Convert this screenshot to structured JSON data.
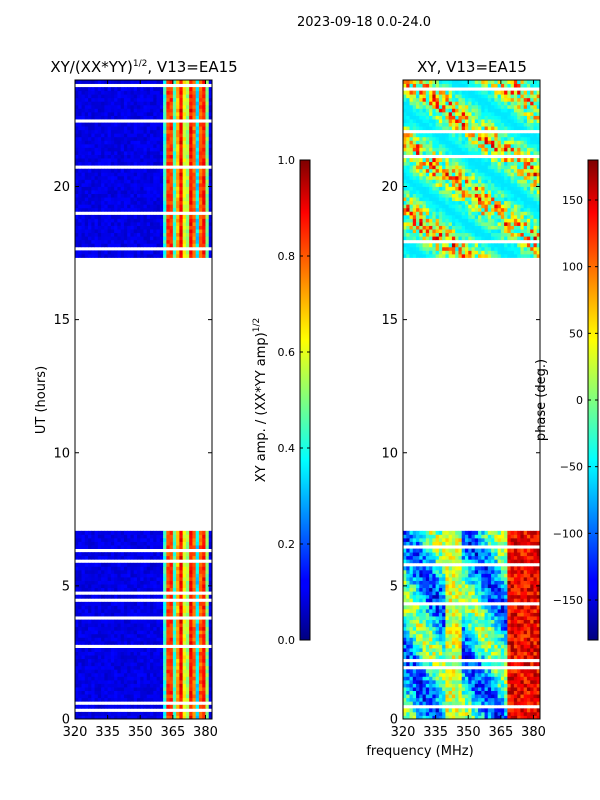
{
  "chart_data": {
    "suptitle": "2023-09-18 0.0-24.0",
    "xlabel": "frequency (MHz)",
    "panels": [
      {
        "type": "heatmap",
        "title": "XY/(XX*YY)",
        "title_sup": "1/2",
        "title_rest": ", V13=EA15",
        "ylabel": "UT (hours)",
        "xlim": [
          320,
          383
        ],
        "ylim": [
          0,
          24
        ],
        "xticks": [
          "320",
          "335",
          "350",
          "365",
          "380"
        ],
        "xtick_values": [
          320,
          335,
          350,
          365,
          380
        ],
        "yticks": [
          "0",
          "5",
          "10",
          "15",
          "20"
        ],
        "ytick_values": [
          0,
          5,
          10,
          15,
          20
        ],
        "colorbar": {
          "label": "XY amp. / (XX*YY amp)",
          "label_sup": "1/2",
          "range": [
            0,
            1
          ],
          "ticks": [
            "0.0",
            "0.2",
            "0.4",
            "0.6",
            "0.8",
            "1.0"
          ],
          "tick_values": [
            0,
            0.2,
            0.4,
            0.6,
            0.8,
            1.0
          ]
        }
      },
      {
        "type": "heatmap",
        "title": "XY, V13=EA15",
        "ylabel": "",
        "xlim": [
          320,
          383
        ],
        "ylim": [
          0,
          24
        ],
        "xticks": [
          "320",
          "335",
          "350",
          "365",
          "380"
        ],
        "xtick_values": [
          320,
          335,
          350,
          365,
          380
        ],
        "yticks": [
          "0",
          "5",
          "10",
          "15",
          "20"
        ],
        "ytick_values": [
          0,
          5,
          10,
          15,
          20
        ],
        "colorbar": {
          "label": "phase (deg.)",
          "range": [
            -180,
            180
          ],
          "ticks": [
            "−150",
            "−100",
            "−50",
            "0",
            "50",
            "100",
            "150"
          ],
          "tick_values": [
            -150,
            -100,
            -50,
            0,
            50,
            100,
            150
          ]
        }
      }
    ],
    "data_segments_ut": [
      [
        0,
        7.1
      ],
      [
        17.3,
        24
      ]
    ]
  }
}
